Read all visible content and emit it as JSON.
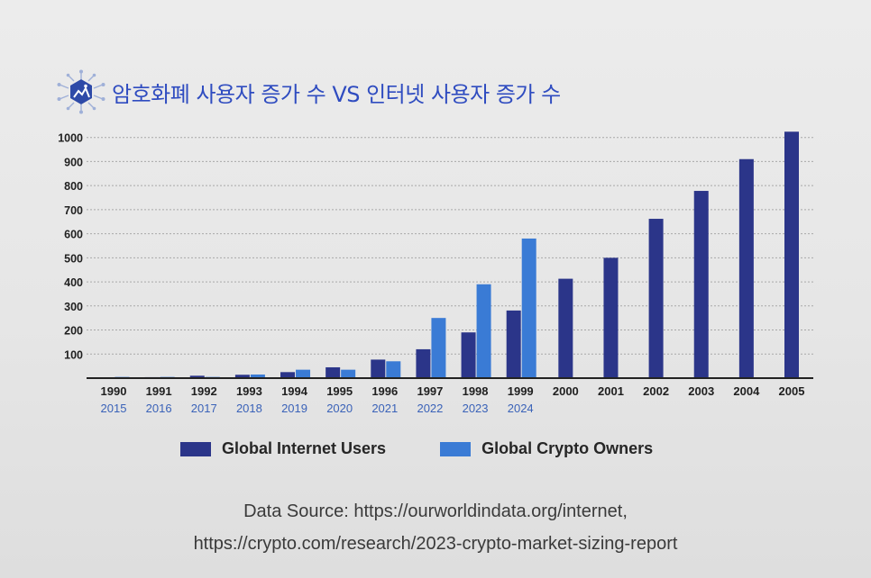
{
  "header": {
    "title": "암호화폐 사용자 증가 수 VS 인터넷 사용자 증가 수"
  },
  "icons": {
    "logo": "circuit-hexagon-icon"
  },
  "colors": {
    "internet": "#2b3589",
    "crypto": "#3a7bd5",
    "background": "#e9e9e9",
    "grid": "#a8a8a8",
    "label_primary": "#1f1f1f",
    "label_secondary": "#3a62b8",
    "title": "#2f4cc0"
  },
  "legend": {
    "internet_label": "Global Internet Users",
    "crypto_label": "Global Crypto Owners"
  },
  "source": {
    "line1": "Data Source: https://ourworldindata.org/internet,",
    "line2": "https://crypto.com/research/2023-crypto-market-sizing-report"
  },
  "chart_data": {
    "type": "bar",
    "title": "암호화폐 사용자 증가 수 VS 인터넷 사용자 증가 수",
    "categories": [
      "1990",
      "1991",
      "1992",
      "1993",
      "1994",
      "1995",
      "1996",
      "1997",
      "1998",
      "1999",
      "2000",
      "2001",
      "2002",
      "2003",
      "2004",
      "2005"
    ],
    "secondary_categories": [
      "2015",
      "2016",
      "2017",
      "2018",
      "2019",
      "2020",
      "2021",
      "2022",
      "2023",
      "2024",
      "",
      "",
      "",
      "",
      "",
      ""
    ],
    "series": [
      {
        "name": "Global Internet Users",
        "values": [
          3,
          4,
          10,
          14,
          25,
          45,
          77,
          120,
          190,
          281,
          413,
          500,
          662,
          778,
          910,
          1024
        ]
      },
      {
        "name": "Global Crypto Owners",
        "values": [
          5,
          5,
          5,
          15,
          35,
          35,
          70,
          250,
          390,
          580,
          null,
          null,
          null,
          null,
          null,
          null
        ]
      }
    ],
    "yticks": [
      100,
      200,
      300,
      400,
      500,
      600,
      700,
      800,
      900,
      1000
    ],
    "ylim": [
      0,
      1040
    ],
    "xlabel": "",
    "ylabel": "",
    "grid": true,
    "legend_position": "bottom"
  }
}
